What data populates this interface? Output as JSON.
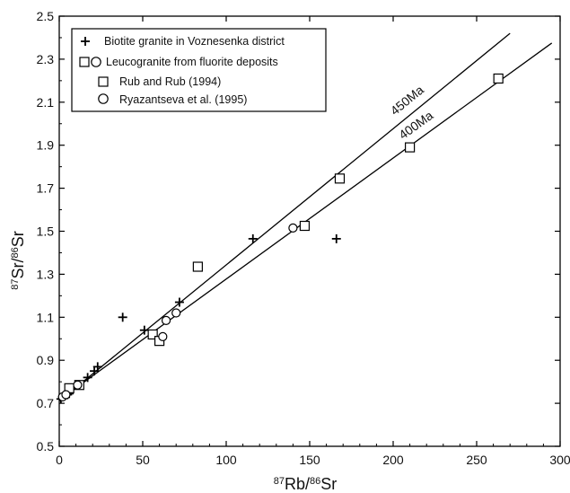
{
  "chart_data": {
    "type": "scatter",
    "x_axis": {
      "label_sup": "87",
      "label_main": "Rb/",
      "label_sup2": "86",
      "label_end": "Sr",
      "range": [
        0,
        300
      ],
      "ticks": [
        "0",
        "50",
        "100",
        "150",
        "200",
        "250",
        "300"
      ]
    },
    "y_axis": {
      "label_sup": "87",
      "label_main": "Sr/",
      "label_sup2": "86",
      "label_end": "Sr",
      "range": [
        0.5,
        2.5
      ],
      "ticks": [
        "0.5",
        "0.7",
        "0.9",
        "1.1",
        "1.3",
        "1.5",
        "1.7",
        "1.9",
        "2.1",
        "2.3",
        "2.5"
      ]
    },
    "legend": {
      "placement": "top-left",
      "entries": [
        {
          "symbol": "plus",
          "label": "Biotite granite in Voznesenka district"
        },
        {
          "symbol": "square-circle",
          "label": "Leucogranite from fluorite deposits"
        },
        {
          "symbol": "square",
          "label": "Rub and Rub (1994)"
        },
        {
          "symbol": "circle",
          "label": "Ryazantseva et al. (1995)"
        }
      ]
    },
    "reference_lines": [
      {
        "name": "450Ma",
        "x1": 0,
        "y1": 0.71,
        "x2": 270,
        "y2": 2.42
      },
      {
        "name": "400Ma",
        "x1": 0,
        "y1": 0.715,
        "x2": 295,
        "y2": 2.375
      }
    ],
    "series": [
      {
        "symbol": "plus",
        "points": [
          [
            1,
            0.72
          ],
          [
            2,
            0.73
          ],
          [
            3,
            0.735
          ],
          [
            4,
            0.74
          ],
          [
            5,
            0.74
          ],
          [
            6,
            0.745
          ],
          [
            17,
            0.82
          ],
          [
            21,
            0.85
          ],
          [
            23,
            0.87
          ],
          [
            38,
            1.1
          ],
          [
            51,
            1.04
          ],
          [
            72,
            1.17
          ],
          [
            116,
            1.465
          ],
          [
            166,
            1.465
          ]
        ]
      },
      {
        "symbol": "square",
        "points": [
          [
            6,
            0.77
          ],
          [
            12,
            0.785
          ],
          [
            56,
            1.02
          ],
          [
            60,
            0.99
          ],
          [
            83,
            1.335
          ],
          [
            147,
            1.525
          ],
          [
            168,
            1.745
          ],
          [
            210,
            1.89
          ],
          [
            263,
            2.21
          ]
        ]
      },
      {
        "symbol": "circle",
        "points": [
          [
            2,
            0.73
          ],
          [
            4,
            0.74
          ],
          [
            11,
            0.785
          ],
          [
            62,
            1.01
          ],
          [
            64,
            1.085
          ],
          [
            70,
            1.12
          ],
          [
            140,
            1.515
          ]
        ]
      }
    ],
    "grid": false
  }
}
